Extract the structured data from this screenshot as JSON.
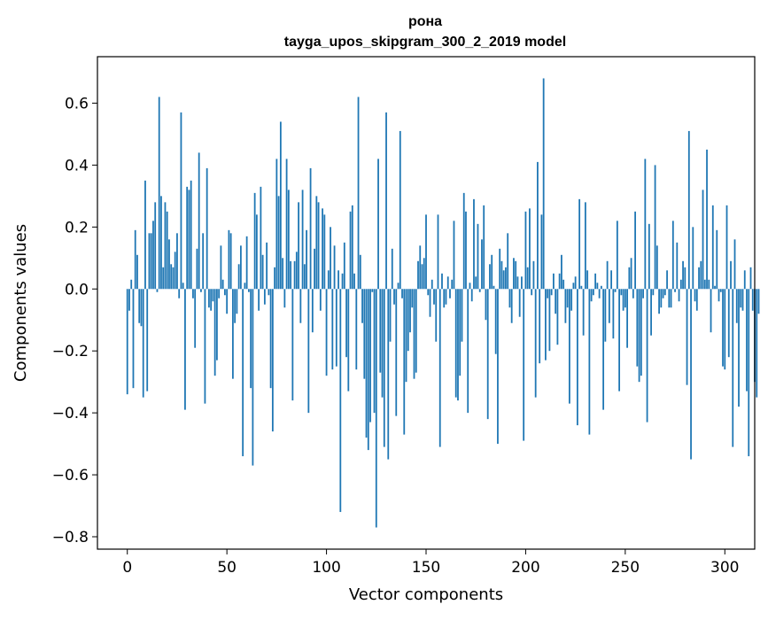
{
  "chart_data": {
    "type": "bar",
    "title": "рона",
    "subtitle": "tayga_upos_skipgram_300_2_2019 model",
    "xlabel": "Vector components",
    "ylabel": "Components values",
    "xlim": [
      -15,
      315
    ],
    "ylim": [
      -0.84,
      0.75
    ],
    "xticks": [
      0,
      50,
      100,
      150,
      200,
      250,
      300
    ],
    "yticks": [
      0.6,
      0.4,
      0.2,
      0.0,
      -0.2,
      -0.4,
      -0.6,
      -0.8
    ],
    "xtick_labels": [
      "0",
      "50",
      "100",
      "150",
      "200",
      "250",
      "300"
    ],
    "ytick_labels": [
      "0.6",
      "0.4",
      "0.2",
      "0.0",
      "−0.2",
      "−0.4",
      "−0.6",
      "−0.8"
    ],
    "color": "#1f77b4",
    "grid": false,
    "legend": "none",
    "values": [
      -0.34,
      -0.07,
      0.03,
      -0.32,
      0.19,
      0.11,
      -0.11,
      -0.12,
      -0.35,
      0.35,
      -0.33,
      0.18,
      0.18,
      0.22,
      0.28,
      -0.01,
      0.62,
      0.3,
      0.07,
      0.28,
      0.25,
      0.16,
      0.08,
      0.07,
      0.12,
      0.18,
      -0.03,
      0.57,
      0.02,
      -0.39,
      0.33,
      0.32,
      0.35,
      -0.03,
      -0.19,
      0.13,
      0.44,
      -0.01,
      0.18,
      -0.37,
      0.39,
      -0.06,
      -0.07,
      -0.04,
      -0.28,
      -0.23,
      -0.03,
      0.14,
      0.03,
      -0.02,
      -0.08,
      0.19,
      0.18,
      -0.29,
      -0.11,
      -0.08,
      0.08,
      0.14,
      -0.54,
      0.02,
      0.17,
      -0.01,
      -0.32,
      -0.57,
      0.31,
      0.24,
      -0.07,
      0.33,
      0.11,
      -0.05,
      0.15,
      -0.02,
      -0.32,
      -0.46,
      0.07,
      0.42,
      0.3,
      0.54,
      0.1,
      -0.06,
      0.42,
      0.32,
      0.09,
      -0.36,
      0.09,
      0.12,
      0.28,
      -0.11,
      0.32,
      0.08,
      0.19,
      -0.4,
      0.39,
      -0.14,
      0.13,
      0.3,
      0.28,
      -0.07,
      0.26,
      0.24,
      -0.28,
      0.06,
      0.2,
      -0.26,
      0.14,
      -0.25,
      0.06,
      -0.72,
      0.05,
      0.15,
      -0.22,
      -0.33,
      0.25,
      0.27,
      0.05,
      -0.26,
      0.62,
      0.11,
      -0.11,
      -0.29,
      -0.48,
      -0.52,
      -0.43,
      -0.01,
      -0.4,
      -0.77,
      0.42,
      -0.27,
      -0.35,
      -0.51,
      0.57,
      -0.55,
      -0.17,
      0.13,
      -0.05,
      -0.41,
      0.02,
      0.51,
      -0.03,
      -0.47,
      -0.3,
      -0.2,
      -0.14,
      -0.06,
      -0.29,
      -0.27,
      0.09,
      0.14,
      0.08,
      0.1,
      0.24,
      -0.02,
      -0.09,
      0.03,
      -0.05,
      -0.17,
      0.24,
      -0.51,
      0.05,
      -0.06,
      -0.05,
      0.04,
      -0.03,
      0.03,
      0.22,
      -0.35,
      -0.36,
      -0.28,
      -0.17,
      0.31,
      0.25,
      -0.4,
      0.02,
      -0.04,
      0.29,
      0.04,
      0.21,
      -0.01,
      0.16,
      0.27,
      -0.1,
      -0.42,
      0.08,
      0.11,
      0.01,
      -0.21,
      -0.5,
      0.13,
      0.09,
      0.06,
      0.07,
      0.18,
      -0.06,
      -0.11,
      0.1,
      0.09,
      0.04,
      -0.09,
      0.04,
      -0.49,
      0.25,
      0.07,
      0.26,
      -0.02,
      0.09,
      -0.35,
      0.41,
      -0.24,
      0.24,
      0.68,
      -0.23,
      -0.03,
      -0.2,
      -0.02,
      0.05,
      -0.08,
      -0.18,
      0.05,
      0.11,
      0.03,
      -0.11,
      -0.06,
      -0.37,
      -0.07,
      0.02,
      0.04,
      -0.44,
      0.29,
      0.01,
      -0.15,
      0.28,
      0.06,
      -0.47,
      -0.04,
      -0.02,
      0.05,
      0.02,
      -0.03,
      0.01,
      -0.39,
      -0.17,
      0.09,
      -0.11,
      0.06,
      -0.16,
      -0.01,
      0.22,
      -0.33,
      -0.02,
      -0.07,
      -0.06,
      -0.19,
      0.07,
      0.1,
      -0.03,
      0.25,
      -0.25,
      -0.3,
      -0.28,
      -0.03,
      0.42,
      -0.43,
      0.21,
      -0.15,
      -0.02,
      0.4,
      0.14,
      -0.08,
      -0.06,
      -0.03,
      -0.02,
      0.06,
      -0.06,
      -0.06,
      0.22,
      -0.01,
      0.15,
      -0.04,
      0.03,
      0.09,
      0.07,
      -0.31,
      0.51,
      -0.55,
      0.2,
      -0.04,
      -0.07,
      0.07,
      0.09,
      0.32,
      0.03,
      0.45,
      0.03,
      -0.14,
      0.27,
      0.01,
      0.19,
      -0.04,
      -0.01,
      -0.25,
      -0.26,
      0.27,
      -0.22,
      0.09,
      -0.51,
      0.16,
      -0.11,
      -0.38,
      -0.06,
      -0.07,
      0.06,
      -0.33,
      -0.54,
      0.07,
      -0.07,
      -0.3,
      -0.35,
      -0.08
    ]
  }
}
